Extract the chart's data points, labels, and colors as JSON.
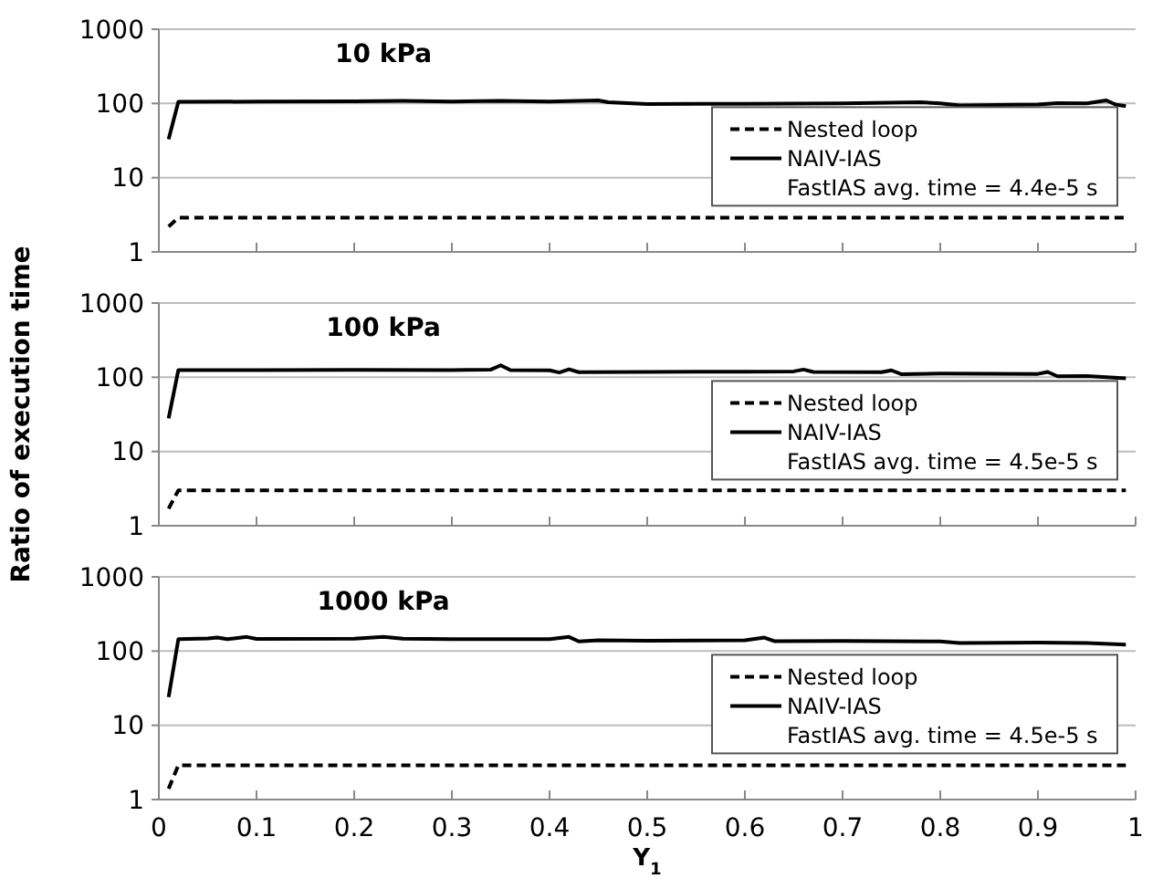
{
  "chart_data": [
    {
      "type": "line",
      "title": "10 kPa",
      "xlim": [
        0,
        1
      ],
      "xticks": [
        0,
        0.1,
        0.2,
        0.3,
        0.4,
        0.5,
        0.6,
        0.7,
        0.8,
        0.9,
        1
      ],
      "ylim": [
        1,
        1000
      ],
      "yticks": [
        1,
        10,
        100,
        1000
      ],
      "log": true,
      "grid": "y",
      "legend": "right",
      "tick_labels": "y",
      "annotations": [
        "FastIAS avg. time = 4.4e-5 s"
      ],
      "series": [
        {
          "name": "Nested loop",
          "color": "#000000",
          "line_style": "dashed",
          "x": [
            0.01,
            0.02,
            0.5,
            0.99
          ],
          "values": [
            2.2,
            2.9,
            2.9,
            2.9
          ]
        },
        {
          "name": "NAIV-IAS",
          "color": "#000000",
          "line_style": "solid",
          "x": [
            0.01,
            0.02,
            0.1,
            0.2,
            0.25,
            0.3,
            0.35,
            0.4,
            0.45,
            0.46,
            0.5,
            0.6,
            0.7,
            0.78,
            0.8,
            0.82,
            0.9,
            0.92,
            0.95,
            0.97,
            0.98,
            0.99
          ],
          "values": [
            33,
            105,
            106,
            107,
            108,
            106,
            108,
            106,
            110,
            104,
            98,
            99,
            100,
            104,
            100,
            94,
            97,
            101,
            100,
            110,
            96,
            92
          ]
        }
      ]
    },
    {
      "type": "line",
      "title": "100 kPa",
      "ylabel": "Ratio of execution time",
      "xlim": [
        0,
        1
      ],
      "xticks": [
        0,
        0.1,
        0.2,
        0.3,
        0.4,
        0.5,
        0.6,
        0.7,
        0.8,
        0.9,
        1
      ],
      "ylim": [
        1,
        1000
      ],
      "yticks": [
        1,
        10,
        100,
        1000
      ],
      "log": true,
      "grid": "y",
      "legend": "right",
      "tick_labels": "y",
      "annotations": [
        "FastIAS avg. time = 4.5e-5 s"
      ],
      "series": [
        {
          "name": "Nested loop",
          "color": "#000000",
          "line_style": "dashed",
          "x": [
            0.01,
            0.02,
            0.5,
            0.99
          ],
          "values": [
            1.7,
            3.0,
            3.0,
            3.0
          ]
        },
        {
          "name": "NAIV-IAS",
          "color": "#000000",
          "line_style": "solid",
          "x": [
            0.01,
            0.02,
            0.1,
            0.2,
            0.3,
            0.34,
            0.35,
            0.36,
            0.4,
            0.41,
            0.42,
            0.43,
            0.5,
            0.6,
            0.65,
            0.66,
            0.67,
            0.74,
            0.75,
            0.76,
            0.8,
            0.9,
            0.91,
            0.92,
            0.95,
            0.99
          ],
          "values": [
            28,
            125,
            125,
            126,
            125,
            127,
            145,
            125,
            124,
            116,
            128,
            117,
            118,
            119,
            120,
            127,
            118,
            117,
            124,
            110,
            112,
            111,
            118,
            103,
            104,
            97
          ]
        }
      ]
    },
    {
      "type": "line",
      "title": "1000 kPa",
      "xlabel": "Y$_{1}$",
      "xlim": [
        0,
        1
      ],
      "xticks": [
        0,
        0.1,
        0.2,
        0.3,
        0.4,
        0.5,
        0.6,
        0.7,
        0.8,
        0.9,
        1
      ],
      "ylim": [
        1,
        1000
      ],
      "yticks": [
        1,
        10,
        100,
        1000
      ],
      "log": true,
      "grid": "y",
      "legend": "right",
      "annotations": [
        "FastIAS avg. time = 4.5e-5 s"
      ],
      "series": [
        {
          "name": "Nested loop",
          "color": "#000000",
          "line_style": "dashed",
          "x": [
            0.01,
            0.02,
            0.5,
            0.99
          ],
          "values": [
            1.4,
            2.9,
            2.9,
            2.9
          ]
        },
        {
          "name": "NAIV-IAS",
          "color": "#000000",
          "line_style": "solid",
          "x": [
            0.01,
            0.02,
            0.05,
            0.06,
            0.07,
            0.09,
            0.1,
            0.2,
            0.23,
            0.25,
            0.3,
            0.4,
            0.42,
            0.43,
            0.45,
            0.5,
            0.6,
            0.62,
            0.63,
            0.7,
            0.8,
            0.82,
            0.9,
            0.95,
            0.99
          ],
          "values": [
            24,
            145,
            148,
            152,
            145,
            155,
            146,
            147,
            155,
            147,
            145,
            145,
            155,
            135,
            140,
            138,
            140,
            152,
            136,
            137,
            135,
            128,
            130,
            128,
            122
          ]
        }
      ]
    }
  ]
}
